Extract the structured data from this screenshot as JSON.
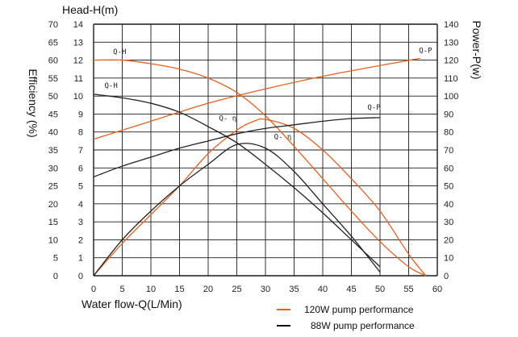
{
  "chart_data": {
    "type": "line",
    "xlabel": "Water flow-Q(L/Min)",
    "ylabel_head": "Head-H(m)",
    "ylabel_efficiency": "Efficiency (%)",
    "ylabel_power": "Power-P(w)",
    "xlim": [
      0,
      60
    ],
    "head_lim": [
      0,
      14
    ],
    "efficiency_lim": [
      0,
      70
    ],
    "power_lim": [
      0,
      140
    ],
    "x_ticks": [
      0,
      5,
      10,
      15,
      20,
      25,
      30,
      35,
      40,
      45,
      50,
      55,
      60
    ],
    "head_ticks": [
      0,
      1,
      2,
      3,
      4,
      5,
      6,
      7,
      8,
      9,
      10,
      11,
      12,
      13,
      14
    ],
    "efficiency_ticks": [
      0,
      5,
      10,
      15,
      20,
      25,
      30,
      35,
      40,
      45,
      50,
      55,
      60,
      65,
      70
    ],
    "power_ticks": [
      0,
      10,
      20,
      30,
      40,
      50,
      60,
      70,
      80,
      90,
      100,
      110,
      120,
      130,
      140
    ],
    "grid": true,
    "series": [
      {
        "name": "120W Q-H",
        "pump": "120W",
        "curve": "Q-H",
        "axis": "head",
        "color": "#e8601c",
        "x": [
          0,
          5,
          10,
          15,
          20,
          25,
          30,
          35,
          40,
          45,
          50,
          55,
          58
        ],
        "y": [
          12.0,
          12.0,
          11.8,
          11.5,
          11.0,
          10.2,
          8.9,
          7.2,
          5.4,
          3.6,
          1.9,
          0.5,
          0
        ]
      },
      {
        "name": "120W Q-P",
        "pump": "120W",
        "curve": "Q-P",
        "axis": "power",
        "color": "#e8601c",
        "x": [
          0,
          10,
          20,
          30,
          40,
          50,
          57
        ],
        "y": [
          76,
          86,
          96,
          104,
          111,
          117,
          121
        ]
      },
      {
        "name": "120W Q-η",
        "pump": "120W",
        "curve": "Q-η",
        "axis": "efficiency",
        "color": "#e8601c",
        "x": [
          0,
          5,
          10,
          15,
          20,
          25,
          28,
          30,
          35,
          40,
          45,
          50,
          55,
          58
        ],
        "y": [
          0,
          9,
          17,
          25,
          34,
          40.5,
          43,
          43.5,
          41,
          35,
          27,
          18,
          6,
          0
        ]
      },
      {
        "name": "88W Q-H",
        "pump": "88W",
        "curve": "Q-H",
        "axis": "head",
        "color": "#222222",
        "x": [
          0,
          5,
          10,
          15,
          20,
          25,
          30,
          35,
          40,
          45,
          50
        ],
        "y": [
          10.1,
          9.9,
          9.6,
          9.1,
          8.3,
          7.4,
          6.2,
          4.9,
          3.5,
          2.0,
          0.5
        ]
      },
      {
        "name": "88W Q-P",
        "pump": "88W",
        "curve": "Q-P",
        "axis": "power",
        "color": "#222222",
        "x": [
          0,
          5,
          10,
          15,
          20,
          25,
          30,
          35,
          40,
          45,
          50
        ],
        "y": [
          55,
          61,
          66,
          71,
          75,
          79,
          82,
          84,
          86,
          87.5,
          88
        ]
      },
      {
        "name": "88W Q-η",
        "pump": "88W",
        "curve": "Q-η",
        "axis": "efficiency",
        "color": "#222222",
        "x": [
          0,
          5,
          10,
          15,
          20,
          25,
          30,
          35,
          40,
          45,
          50
        ],
        "y": [
          0,
          10,
          18,
          25,
          31,
          36.5,
          35.5,
          29,
          20,
          11,
          1
        ]
      }
    ],
    "annotations": [
      {
        "text": "Q-H",
        "series": "120W Q-H"
      },
      {
        "text": "Q-P",
        "series": "120W Q-P"
      },
      {
        "text": "Q- η",
        "series": "120W Q-η"
      },
      {
        "text": "Q-H",
        "series": "88W Q-H"
      },
      {
        "text": "Q-P",
        "series": "88W Q-P"
      },
      {
        "text": "Q- η",
        "series": "88W Q-η"
      }
    ],
    "legend": [
      {
        "label": "120W pump performance",
        "color": "#e8601c"
      },
      {
        "label": "88W pump performance",
        "color": "#111111"
      }
    ]
  }
}
